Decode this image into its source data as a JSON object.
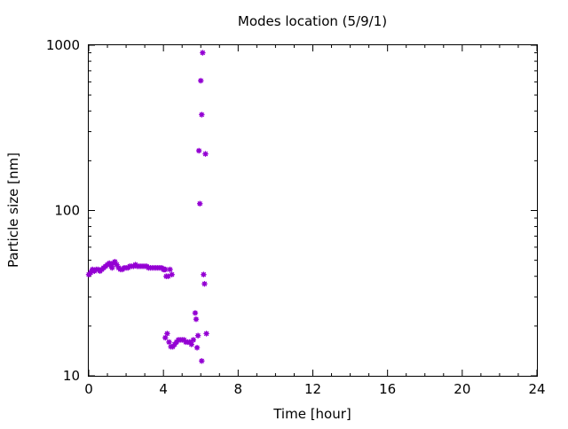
{
  "chart_data": {
    "type": "scatter",
    "title": "Modes location (5/9/1)",
    "xlabel": "Time [hour]",
    "ylabel": "Particle size [nm]",
    "xlim": [
      0,
      24
    ],
    "ylim": [
      10,
      1000
    ],
    "yscale": "log",
    "xticks": [
      0,
      4,
      8,
      12,
      16,
      20,
      24
    ],
    "xtick_labels": [
      "0",
      "4",
      "8",
      "12",
      "16",
      "20",
      "24"
    ],
    "yticks": [
      10,
      100,
      1000
    ],
    "ytick_labels": [
      "10",
      "100",
      "1000"
    ],
    "grid": false,
    "legend": "none",
    "marker_color": "#9400d3",
    "series": [
      {
        "points": [
          [
            0.0,
            41
          ],
          [
            0.1,
            42
          ],
          [
            0.15,
            43
          ],
          [
            0.2,
            44
          ],
          [
            0.3,
            43
          ],
          [
            0.4,
            44
          ],
          [
            0.5,
            44
          ],
          [
            0.6,
            43
          ],
          [
            0.7,
            44
          ],
          [
            0.8,
            45
          ],
          [
            0.9,
            46
          ],
          [
            1.0,
            47
          ],
          [
            1.1,
            48
          ],
          [
            1.2,
            46
          ],
          [
            1.25,
            45
          ],
          [
            1.3,
            48
          ],
          [
            1.4,
            49
          ],
          [
            1.5,
            47
          ],
          [
            1.6,
            45
          ],
          [
            1.7,
            44
          ],
          [
            1.8,
            44
          ],
          [
            1.9,
            45
          ],
          [
            2.0,
            45
          ],
          [
            2.1,
            45
          ],
          [
            2.2,
            46
          ],
          [
            2.3,
            46
          ],
          [
            2.4,
            46
          ],
          [
            2.5,
            47
          ],
          [
            2.6,
            46
          ],
          [
            2.7,
            46
          ],
          [
            2.8,
            46
          ],
          [
            2.9,
            46
          ],
          [
            3.0,
            46
          ],
          [
            3.1,
            46
          ],
          [
            3.2,
            45
          ],
          [
            3.3,
            45
          ],
          [
            3.4,
            45
          ],
          [
            3.5,
            45
          ],
          [
            3.6,
            45
          ],
          [
            3.7,
            45
          ],
          [
            3.8,
            45
          ],
          [
            3.9,
            45
          ],
          [
            4.0,
            44
          ],
          [
            4.05,
            44
          ],
          [
            4.1,
            44
          ],
          [
            4.15,
            40
          ],
          [
            4.25,
            40
          ],
          [
            4.35,
            44
          ],
          [
            4.45,
            41
          ],
          [
            4.1,
            17
          ],
          [
            4.2,
            18
          ],
          [
            4.3,
            16
          ],
          [
            4.4,
            15
          ],
          [
            4.5,
            15
          ],
          [
            4.6,
            15.5
          ],
          [
            4.7,
            16
          ],
          [
            4.8,
            16.5
          ],
          [
            4.9,
            16.5
          ],
          [
            5.0,
            16.5
          ],
          [
            5.1,
            16.5
          ],
          [
            5.2,
            16
          ],
          [
            5.3,
            16
          ],
          [
            5.4,
            16
          ],
          [
            5.5,
            15.5
          ],
          [
            5.6,
            16.5
          ],
          [
            5.7,
            24
          ],
          [
            5.75,
            22
          ],
          [
            5.8,
            14.8
          ],
          [
            5.85,
            17.5
          ],
          [
            5.9,
            230
          ],
          [
            5.95,
            110
          ],
          [
            6.0,
            610
          ],
          [
            6.05,
            380
          ],
          [
            6.1,
            900
          ],
          [
            6.15,
            41
          ],
          [
            6.2,
            36
          ],
          [
            6.25,
            220
          ],
          [
            6.3,
            18
          ],
          [
            6.05,
            12.3
          ]
        ]
      }
    ]
  }
}
